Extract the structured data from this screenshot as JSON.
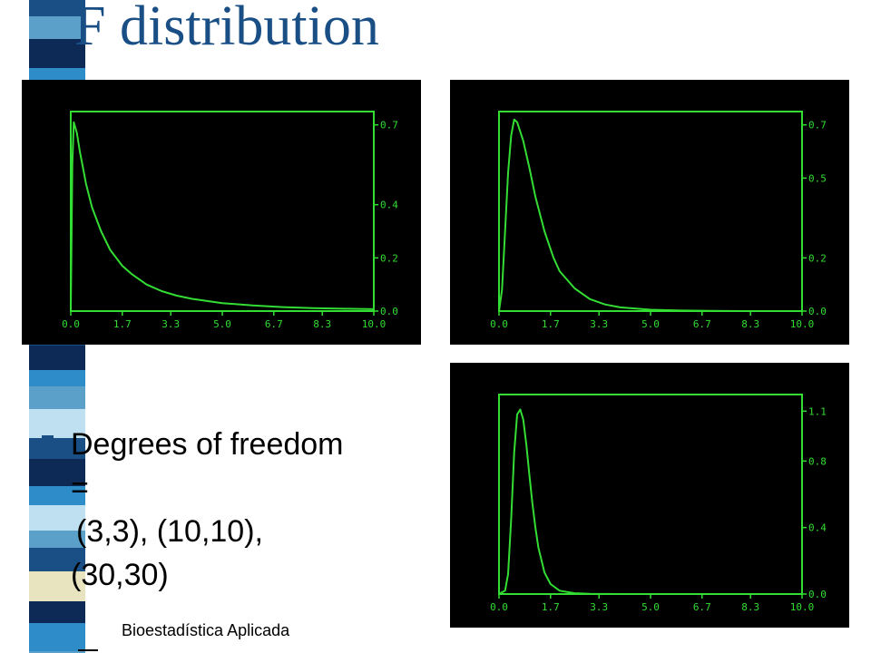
{
  "title": "F distribution",
  "bullet": {
    "line1": "Degrees of freedom",
    "line2": "=",
    "line3": "(3,3), (10,10),",
    "line4": "(30,30)"
  },
  "footer": "Bioestadística Aplicada",
  "colors": {
    "title": "#1a4f86",
    "plot_background": "#000000",
    "plot_line": "#33dd33",
    "stripes": [
      "#1a4f86",
      "#5aa0c8",
      "#0d2a57",
      "#2e8dc9",
      "#bfe0f0",
      "#e8e4c0",
      "#1a6aa8"
    ]
  },
  "chart_data": [
    {
      "type": "line",
      "degrees_of_freedom": [
        3,
        3
      ],
      "x_ticks": [
        "0.0",
        "1.7",
        "3.3",
        "5.0",
        "6.7",
        "8.3",
        "10.0"
      ],
      "y_ticks": [
        "0.0",
        "0.2",
        "0.4",
        "0.7"
      ],
      "xlim": [
        0,
        10
      ],
      "ylim": [
        0,
        0.75
      ],
      "y_axis_side": "right",
      "series": [
        {
          "x": [
            0.0,
            0.05,
            0.1,
            0.2,
            0.3,
            0.4,
            0.5,
            0.7,
            1.0,
            1.3,
            1.7,
            2.0,
            2.5,
            3.0,
            3.5,
            4.0,
            5.0,
            6.0,
            7.0,
            8.0,
            9.0,
            10.0
          ],
          "y": [
            0.0,
            0.55,
            0.71,
            0.67,
            0.6,
            0.54,
            0.48,
            0.39,
            0.3,
            0.23,
            0.17,
            0.14,
            0.1,
            0.075,
            0.058,
            0.046,
            0.03,
            0.021,
            0.015,
            0.011,
            0.009,
            0.007
          ]
        }
      ]
    },
    {
      "type": "line",
      "degrees_of_freedom": [
        10,
        10
      ],
      "x_ticks": [
        "0.0",
        "1.7",
        "3.3",
        "5.0",
        "6.7",
        "8.3",
        "10.0"
      ],
      "y_ticks": [
        "0.0",
        "0.2",
        "0.5",
        "0.7"
      ],
      "xlim": [
        0,
        10
      ],
      "ylim": [
        0,
        0.75
      ],
      "y_axis_side": "right",
      "series": [
        {
          "x": [
            0.0,
            0.1,
            0.2,
            0.3,
            0.4,
            0.5,
            0.6,
            0.8,
            1.0,
            1.2,
            1.5,
            1.8,
            2.0,
            2.5,
            3.0,
            3.5,
            4.0,
            5.0,
            6.0,
            7.0,
            8.0,
            9.0,
            10.0
          ],
          "y": [
            0.0,
            0.08,
            0.3,
            0.52,
            0.66,
            0.72,
            0.71,
            0.64,
            0.54,
            0.43,
            0.3,
            0.2,
            0.15,
            0.085,
            0.045,
            0.025,
            0.014,
            0.005,
            0.002,
            0.001,
            0.0,
            0.0,
            0.0
          ]
        }
      ]
    },
    {
      "type": "line",
      "degrees_of_freedom": [
        30,
        30
      ],
      "x_ticks": [
        "0.0",
        "1.7",
        "3.3",
        "5.0",
        "6.7",
        "8.3",
        "10.0"
      ],
      "y_ticks": [
        "0.0",
        "0.4",
        "0.8",
        "1.1"
      ],
      "xlim": [
        0,
        10
      ],
      "ylim": [
        0,
        1.2
      ],
      "y_axis_side": "right",
      "series": [
        {
          "x": [
            0.0,
            0.2,
            0.3,
            0.4,
            0.5,
            0.6,
            0.7,
            0.8,
            0.9,
            1.0,
            1.1,
            1.2,
            1.3,
            1.5,
            1.7,
            2.0,
            2.5,
            3.0,
            4.0,
            5.0,
            6.0,
            7.0,
            8.0,
            9.0,
            10.0
          ],
          "y": [
            0.0,
            0.02,
            0.12,
            0.45,
            0.85,
            1.08,
            1.11,
            1.05,
            0.9,
            0.72,
            0.55,
            0.4,
            0.28,
            0.13,
            0.06,
            0.02,
            0.005,
            0.001,
            0.0,
            0.0,
            0.0,
            0.0,
            0.0,
            0.0,
            0.0
          ]
        }
      ]
    }
  ]
}
